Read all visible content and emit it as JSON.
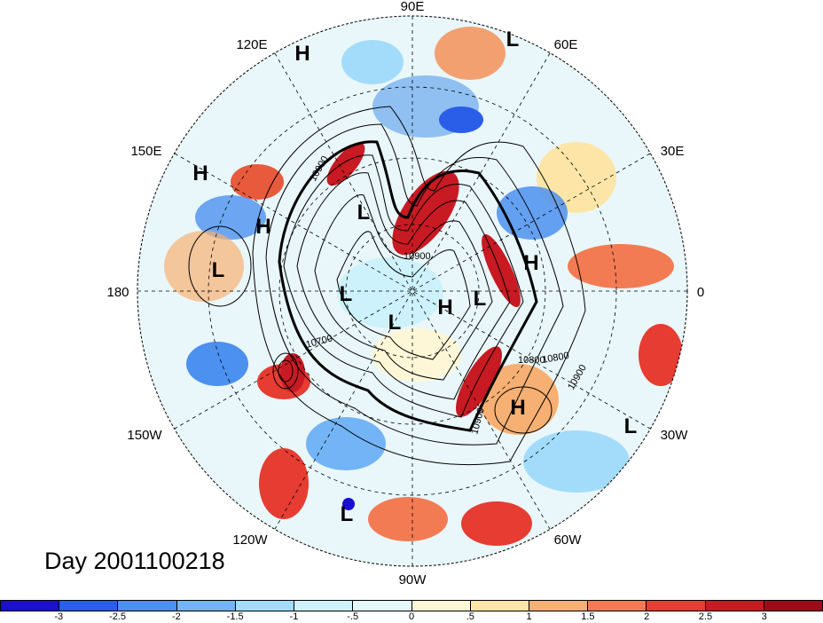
{
  "title": "Day 2001100218",
  "longitude_labels": [
    {
      "text": "90E"
    },
    {
      "text": "60E"
    },
    {
      "text": "30E"
    },
    {
      "text": "0"
    },
    {
      "text": "30W"
    },
    {
      "text": "60W"
    },
    {
      "text": "90W"
    },
    {
      "text": "120W"
    },
    {
      "text": "150W"
    },
    {
      "text": "180"
    },
    {
      "text": "150E"
    },
    {
      "text": "120E"
    }
  ],
  "pressure_centers": [
    "H",
    "L",
    "H",
    "H",
    "L",
    "L",
    "L",
    "H",
    "L",
    "L",
    "H",
    "H",
    "L",
    "L"
  ],
  "contour_labels": [
    "10900",
    "10900",
    "10800",
    "10700",
    "10800",
    "10900",
    "10900"
  ],
  "colorbar": {
    "labels": [
      "-3",
      "-2.5",
      "-2",
      "-1.5",
      "-1",
      "-.5",
      "0",
      ".5",
      "1",
      "1.5",
      "2",
      "2.5",
      "3"
    ],
    "colors": [
      "#1a0fd0",
      "#2a5ee8",
      "#4c90f0",
      "#73b4f6",
      "#a3dcfb",
      "#cdf2fb",
      "#e4f9f9",
      "#fdf7d8",
      "#fce5a6",
      "#f7b073",
      "#f37b53",
      "#e63c32",
      "#c81a22",
      "#9b0c1a"
    ]
  }
}
